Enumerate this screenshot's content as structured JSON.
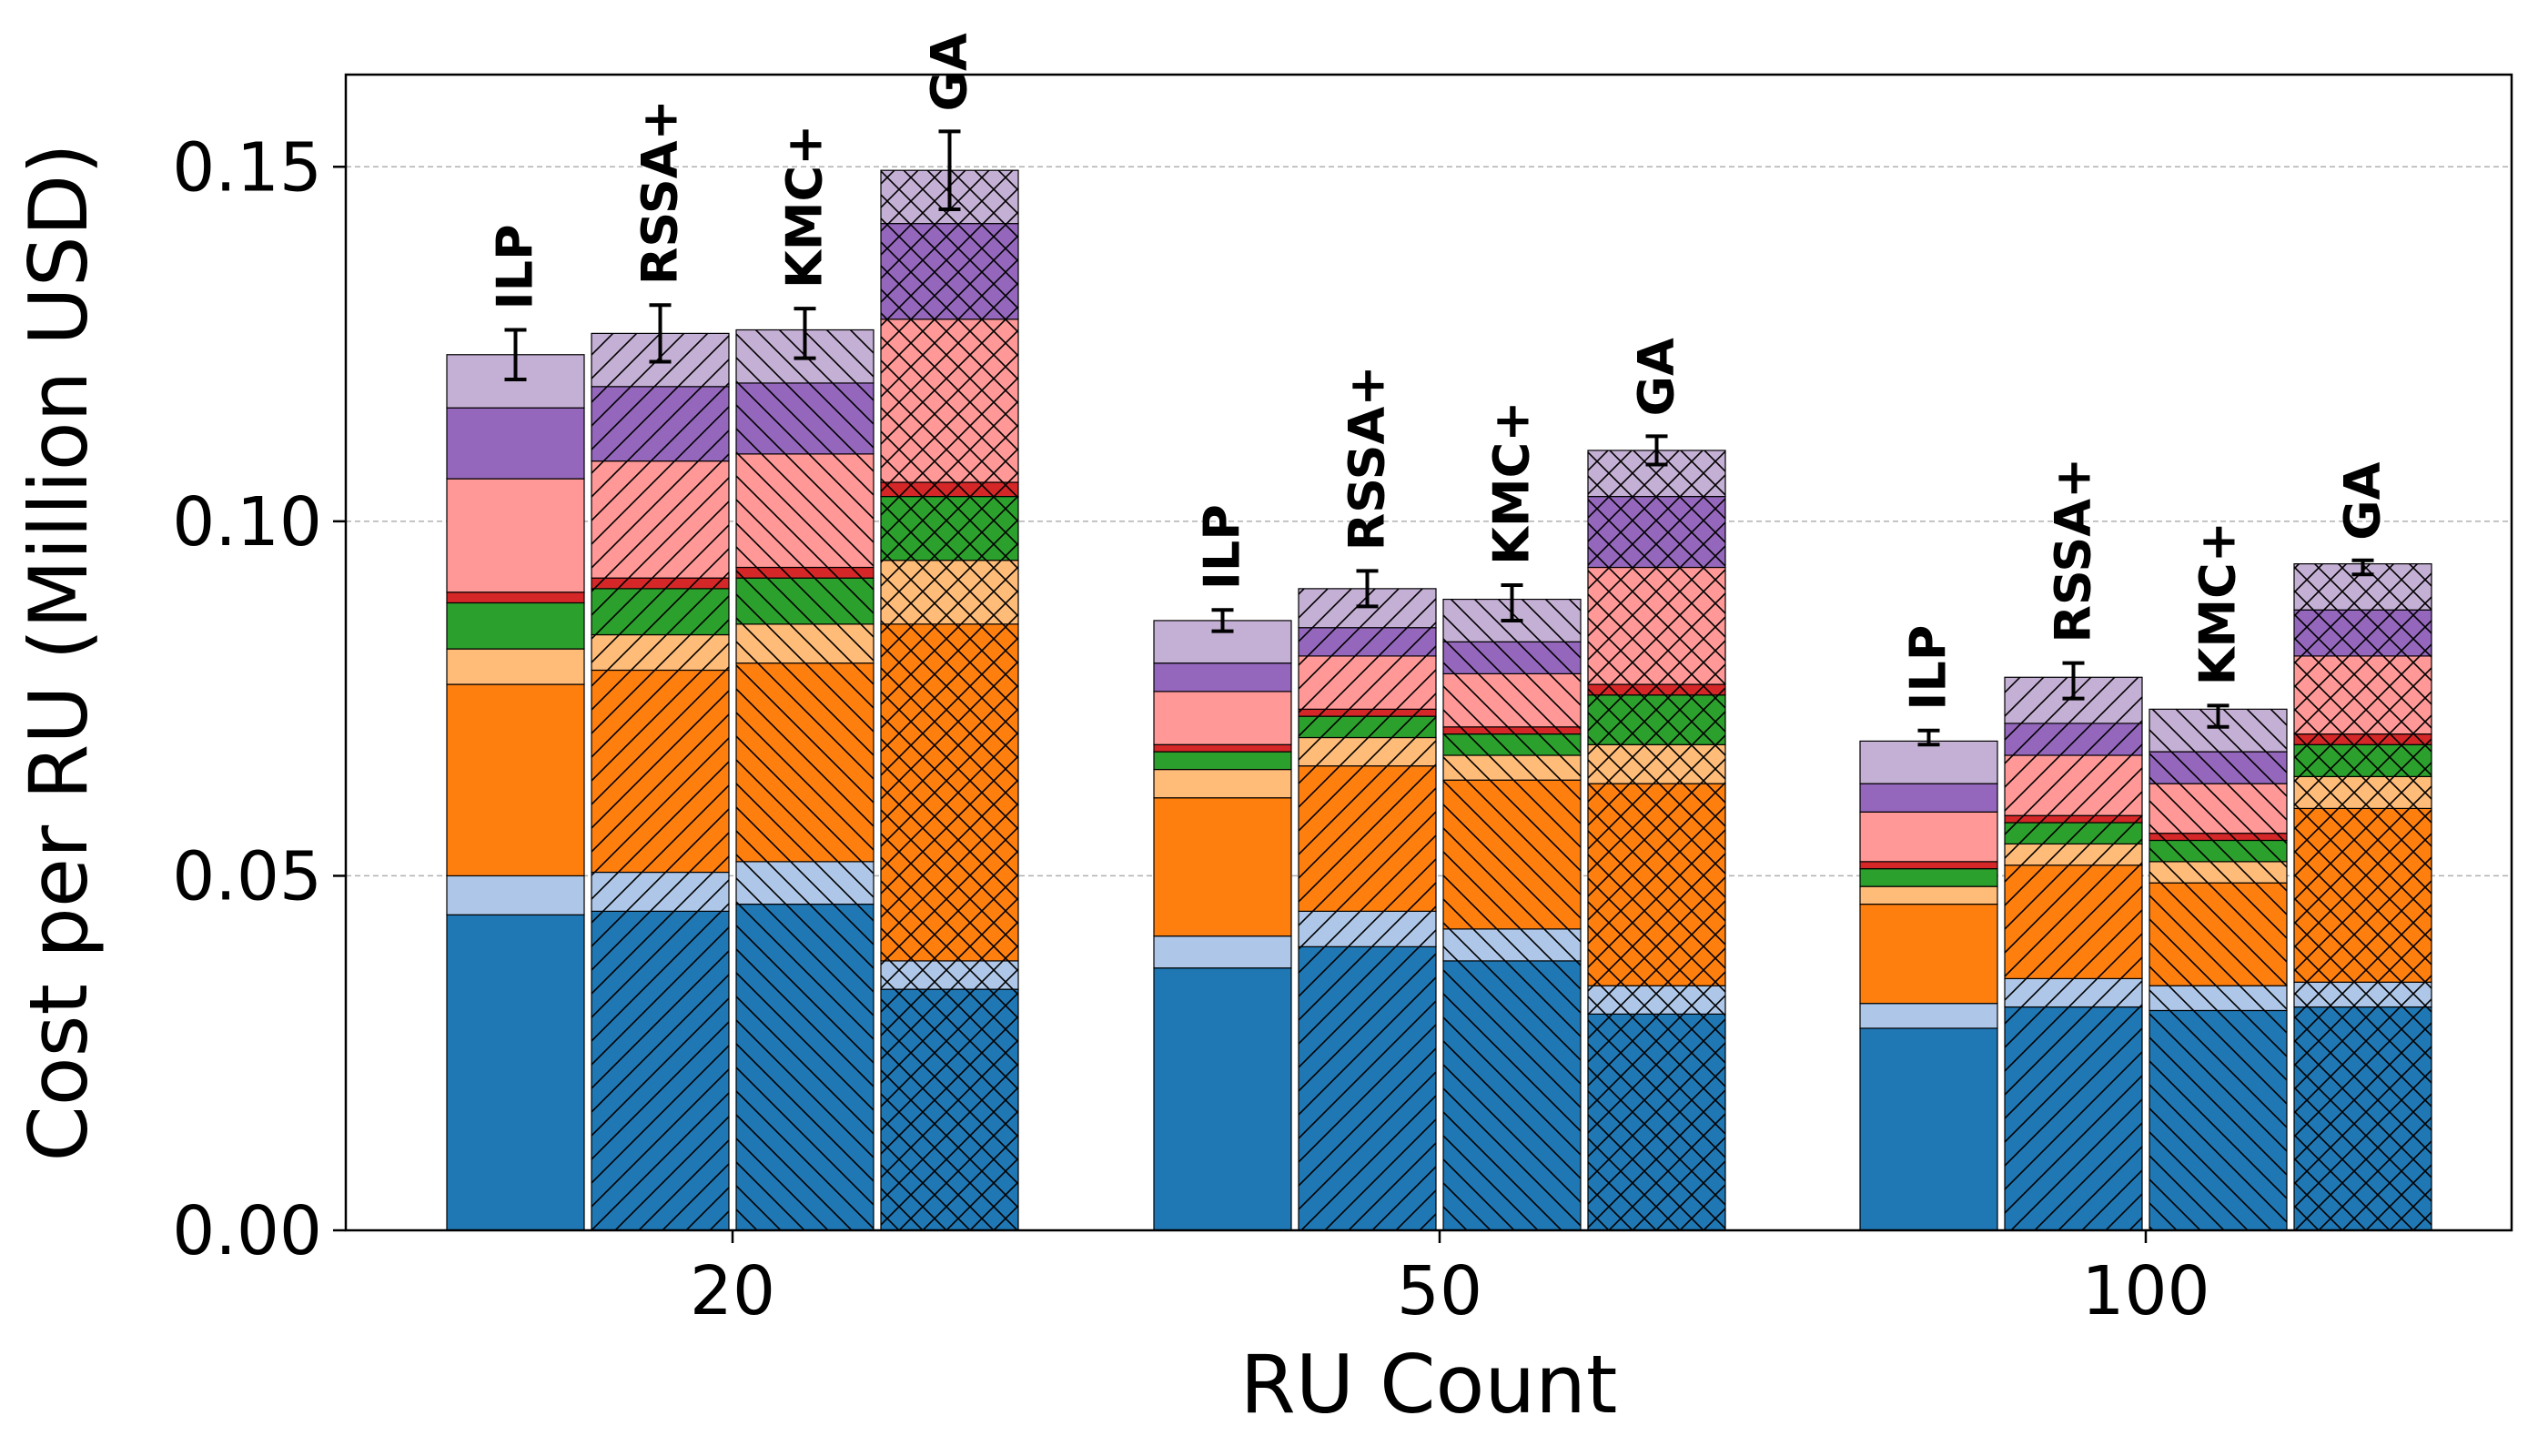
{
  "chart_data": {
    "type": "bar",
    "subtype": "grouped-stacked",
    "title": "",
    "xlabel": "RU Count",
    "ylabel": "Cost per RU (Million USD)",
    "ylim": [
      0,
      0.163
    ],
    "yticks": [
      0.0,
      0.05,
      0.1,
      0.15
    ],
    "ytick_labels": [
      "0.00",
      "0.05",
      "0.10",
      "0.15"
    ],
    "grid": "horizontal dashed",
    "categories": [
      "20",
      "50",
      "100"
    ],
    "methods": [
      {
        "name": "ILP",
        "hatch": "none"
      },
      {
        "name": "RSSA+",
        "hatch": "forward-diagonal"
      },
      {
        "name": "KMC+",
        "hatch": "back-diagonal"
      },
      {
        "name": "GA",
        "hatch": "crosshatch"
      }
    ],
    "component_colors": [
      "#1f77b4",
      "#aec7e8",
      "#ff7f0e",
      "#ffbb78",
      "#2ca02c",
      "#d62728",
      "#ff9896",
      "#9467bd",
      "#c5b0d5"
    ],
    "groups": [
      {
        "category": "20",
        "bars": [
          {
            "method": "ILP",
            "segments": [
              0.0445,
              0.0055,
              0.027,
              0.005,
              0.0065,
              0.0015,
              0.016,
              0.01,
              0.0075
            ],
            "total": 0.1235,
            "error": 0.0035
          },
          {
            "method": "RSSA+",
            "segments": [
              0.045,
              0.0055,
              0.0285,
              0.005,
              0.0065,
              0.0015,
              0.0165,
              0.0105,
              0.0075
            ],
            "total": 0.1265,
            "error": 0.004
          },
          {
            "method": "KMC+",
            "segments": [
              0.046,
              0.006,
              0.028,
              0.0055,
              0.0065,
              0.0015,
              0.016,
              0.01,
              0.0075
            ],
            "total": 0.1265,
            "error": 0.0035
          },
          {
            "method": "GA",
            "segments": [
              0.034,
              0.004,
              0.0475,
              0.009,
              0.009,
              0.002,
              0.023,
              0.0135,
              0.0075
            ],
            "total": 0.1495,
            "error": 0.0055
          }
        ]
      },
      {
        "category": "50",
        "bars": [
          {
            "method": "ILP",
            "segments": [
              0.037,
              0.0045,
              0.0195,
              0.004,
              0.0025,
              0.001,
              0.0075,
              0.004,
              0.006
            ],
            "total": 0.086,
            "error": 0.0015
          },
          {
            "method": "RSSA+",
            "segments": [
              0.04,
              0.005,
              0.0205,
              0.004,
              0.003,
              0.001,
              0.0075,
              0.004,
              0.0055
            ],
            "total": 0.0905,
            "error": 0.0025
          },
          {
            "method": "KMC+",
            "segments": [
              0.038,
              0.0045,
              0.021,
              0.0035,
              0.003,
              0.001,
              0.0075,
              0.0045,
              0.006
            ],
            "total": 0.0885,
            "error": 0.0025
          },
          {
            "method": "GA",
            "segments": [
              0.0305,
              0.004,
              0.0285,
              0.0055,
              0.007,
              0.0015,
              0.0165,
              0.01,
              0.0065
            ],
            "total": 0.11,
            "error": 0.002
          }
        ]
      },
      {
        "category": "100",
        "bars": [
          {
            "method": "ILP",
            "segments": [
              0.0285,
              0.0035,
              0.014,
              0.0025,
              0.0025,
              0.001,
              0.007,
              0.004,
              0.006
            ],
            "total": 0.0695,
            "error": 0.001
          },
          {
            "method": "RSSA+",
            "segments": [
              0.0315,
              0.004,
              0.016,
              0.003,
              0.003,
              0.001,
              0.0085,
              0.0045,
              0.0065
            ],
            "total": 0.0775,
            "error": 0.0025
          },
          {
            "method": "KMC+",
            "segments": [
              0.031,
              0.0035,
              0.0145,
              0.003,
              0.003,
              0.001,
              0.007,
              0.0045,
              0.006
            ],
            "total": 0.0725,
            "error": 0.0015
          },
          {
            "method": "GA",
            "segments": [
              0.0315,
              0.0035,
              0.0245,
              0.0045,
              0.0045,
              0.0015,
              0.011,
              0.0065,
              0.0065
            ],
            "total": 0.0935,
            "error": 0.001
          }
        ]
      }
    ]
  }
}
